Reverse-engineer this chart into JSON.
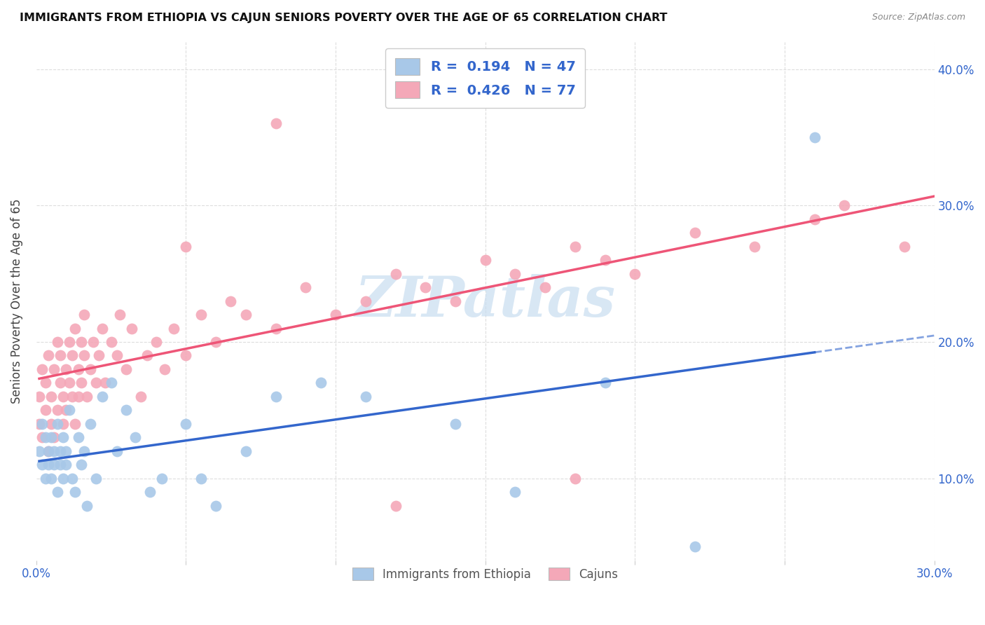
{
  "title": "IMMIGRANTS FROM ETHIOPIA VS CAJUN SENIORS POVERTY OVER THE AGE OF 65 CORRELATION CHART",
  "source": "Source: ZipAtlas.com",
  "ylabel": "Seniors Poverty Over the Age of 65",
  "xlim": [
    0.0,
    0.3
  ],
  "ylim": [
    0.04,
    0.42
  ],
  "ethiopia_R": 0.194,
  "ethiopia_N": 47,
  "cajun_R": 0.426,
  "cajun_N": 77,
  "ethiopia_color": "#a8c8e8",
  "cajun_color": "#f4a8b8",
  "ethiopia_line_color": "#3366cc",
  "cajun_line_color": "#ee5577",
  "watermark_color": "#c8ddf0",
  "background_color": "#ffffff",
  "grid_color": "#dddddd",
  "ethiopia_x": [
    0.001,
    0.002,
    0.002,
    0.003,
    0.003,
    0.004,
    0.004,
    0.005,
    0.005,
    0.006,
    0.006,
    0.007,
    0.007,
    0.008,
    0.008,
    0.009,
    0.009,
    0.01,
    0.01,
    0.011,
    0.012,
    0.013,
    0.014,
    0.015,
    0.016,
    0.017,
    0.018,
    0.02,
    0.022,
    0.025,
    0.027,
    0.03,
    0.033,
    0.038,
    0.042,
    0.05,
    0.055,
    0.06,
    0.07,
    0.08,
    0.095,
    0.11,
    0.14,
    0.16,
    0.19,
    0.22,
    0.26
  ],
  "ethiopia_y": [
    0.12,
    0.11,
    0.14,
    0.1,
    0.13,
    0.12,
    0.11,
    0.13,
    0.1,
    0.12,
    0.11,
    0.14,
    0.09,
    0.12,
    0.11,
    0.1,
    0.13,
    0.12,
    0.11,
    0.15,
    0.1,
    0.09,
    0.13,
    0.11,
    0.12,
    0.08,
    0.14,
    0.1,
    0.16,
    0.17,
    0.12,
    0.15,
    0.13,
    0.09,
    0.1,
    0.14,
    0.1,
    0.08,
    0.12,
    0.16,
    0.17,
    0.16,
    0.14,
    0.09,
    0.17,
    0.05,
    0.35
  ],
  "cajun_x": [
    0.001,
    0.001,
    0.002,
    0.002,
    0.003,
    0.003,
    0.004,
    0.004,
    0.005,
    0.005,
    0.006,
    0.006,
    0.007,
    0.007,
    0.008,
    0.008,
    0.009,
    0.009,
    0.01,
    0.01,
    0.011,
    0.011,
    0.012,
    0.012,
    0.013,
    0.013,
    0.014,
    0.014,
    0.015,
    0.015,
    0.016,
    0.016,
    0.017,
    0.018,
    0.019,
    0.02,
    0.021,
    0.022,
    0.023,
    0.025,
    0.027,
    0.028,
    0.03,
    0.032,
    0.035,
    0.037,
    0.04,
    0.043,
    0.046,
    0.05,
    0.055,
    0.06,
    0.065,
    0.07,
    0.08,
    0.09,
    0.1,
    0.11,
    0.12,
    0.13,
    0.14,
    0.15,
    0.16,
    0.17,
    0.18,
    0.19,
    0.2,
    0.22,
    0.24,
    0.26,
    0.05,
    0.08,
    0.12,
    0.15,
    0.18,
    0.27,
    0.29
  ],
  "cajun_y": [
    0.14,
    0.16,
    0.13,
    0.18,
    0.15,
    0.17,
    0.12,
    0.19,
    0.16,
    0.14,
    0.18,
    0.13,
    0.2,
    0.15,
    0.17,
    0.19,
    0.14,
    0.16,
    0.18,
    0.15,
    0.17,
    0.2,
    0.16,
    0.19,
    0.14,
    0.21,
    0.18,
    0.16,
    0.2,
    0.17,
    0.19,
    0.22,
    0.16,
    0.18,
    0.2,
    0.17,
    0.19,
    0.21,
    0.17,
    0.2,
    0.19,
    0.22,
    0.18,
    0.21,
    0.16,
    0.19,
    0.2,
    0.18,
    0.21,
    0.19,
    0.22,
    0.2,
    0.23,
    0.22,
    0.21,
    0.24,
    0.22,
    0.23,
    0.25,
    0.24,
    0.23,
    0.26,
    0.25,
    0.24,
    0.27,
    0.26,
    0.25,
    0.28,
    0.27,
    0.29,
    0.27,
    0.36,
    0.08,
    0.38,
    0.1,
    0.3,
    0.27
  ]
}
